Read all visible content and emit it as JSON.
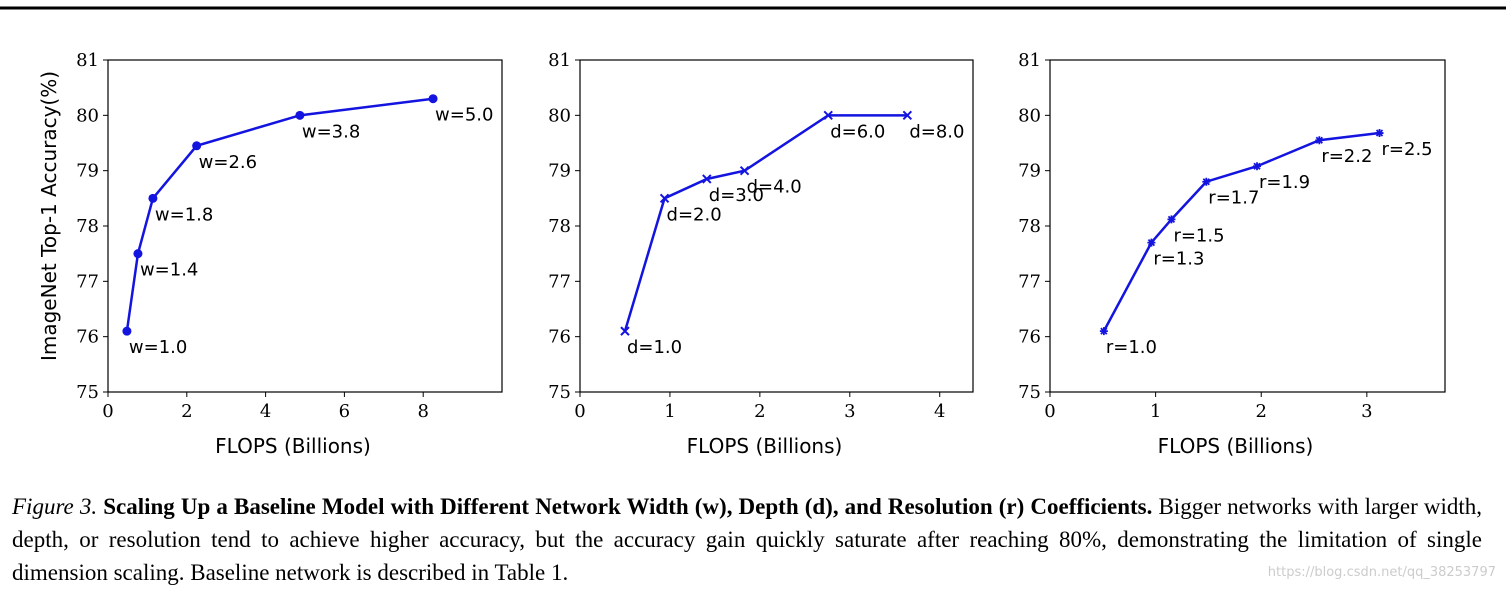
{
  "chart_data": [
    {
      "type": "line",
      "ylabel": "ImageNet Top-1 Accuracy(%)",
      "xlabel": "FLOPS (Billions)",
      "x": [
        0.48,
        0.76,
        1.14,
        2.25,
        4.87,
        8.25
      ],
      "values": [
        76.1,
        77.5,
        78.5,
        79.45,
        80.0,
        80.3
      ],
      "point_labels": [
        "w=1.0",
        "w=1.4",
        "w=1.8",
        "w=2.6",
        "w=3.8",
        "w=5.0"
      ],
      "marker": "circle",
      "color": "#1414e0",
      "xlim": [
        0,
        10
      ],
      "xticks": [
        0,
        2,
        4,
        6,
        8
      ],
      "ylim": [
        75,
        81
      ],
      "yticks": [
        75,
        76,
        77,
        78,
        79,
        80,
        81
      ]
    },
    {
      "type": "line",
      "xlabel": "FLOPS (Billions)",
      "x": [
        0.5,
        0.94,
        1.41,
        1.83,
        2.76,
        3.64
      ],
      "values": [
        76.1,
        78.5,
        78.85,
        79.0,
        80.0,
        80.0
      ],
      "point_labels": [
        "d=1.0",
        "d=2.0",
        "d=3.0",
        "d=4.0",
        "d=6.0",
        "d=8.0"
      ],
      "marker": "x",
      "color": "#1414e0",
      "xlim": [
        0,
        4.37
      ],
      "xticks": [
        0,
        1,
        2,
        3,
        4
      ],
      "ylim": [
        75,
        81
      ],
      "yticks": [
        75,
        76,
        77,
        78,
        79,
        80,
        81
      ]
    },
    {
      "type": "line",
      "xlabel": "FLOPS (Billions)",
      "x": [
        0.51,
        0.96,
        1.15,
        1.48,
        1.96,
        2.55,
        3.12
      ],
      "values": [
        76.1,
        77.7,
        78.12,
        78.8,
        79.08,
        79.55,
        79.68
      ],
      "point_labels": [
        "r=1.0",
        "r=1.3",
        "r=1.5",
        "r=1.7",
        "r=1.9",
        "r=2.2",
        "r=2.5"
      ],
      "marker": "star",
      "color": "#1414e0",
      "xlim": [
        0,
        3.74
      ],
      "xticks": [
        0,
        1,
        2,
        3
      ],
      "ylim": [
        75,
        81
      ],
      "yticks": [
        75,
        76,
        77,
        78,
        79,
        80,
        81
      ]
    }
  ],
  "caption": {
    "label": "Figure 3.",
    "title": "Scaling Up a Baseline Model with Different Network Width (w), Depth (d), and Resolution (r) Coefficients.",
    "body": "Bigger networks with larger width, depth, or resolution tend to achieve higher accuracy, but the accuracy gain quickly saturate after reaching 80%, demonstrating the limitation of single dimension scaling. Baseline network is described in Table 1."
  },
  "watermark": "https://blog.csdn.net/qq_38253797"
}
